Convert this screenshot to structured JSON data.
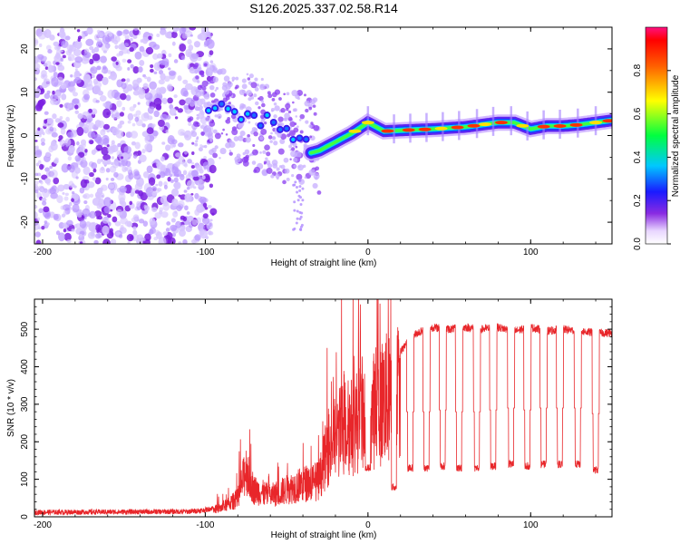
{
  "figure": {
    "title": "S126.2025.337.02.58.R14"
  },
  "chart_data": [
    {
      "type": "heatmap",
      "name": "spectrogram",
      "title": "S126.2025.337.02.58.R14",
      "xlabel": "Height of straight line (km)",
      "ylabel": "Frequency (Hz)",
      "xlim": [
        -205,
        150
      ],
      "ylim": [
        -25,
        25
      ],
      "xticks": [
        -200,
        -100,
        0,
        100
      ],
      "xtick_labels": [
        "-200",
        "-100",
        "0",
        "100"
      ],
      "yticks": [
        -20,
        -10,
        0,
        10,
        20
      ],
      "ytick_labels": [
        "-20",
        "-10",
        "0",
        "10",
        "20"
      ],
      "colorbar": {
        "label": "Normalized spectral amplitude",
        "range": [
          0,
          1
        ],
        "ticks": [
          0.0,
          0.2,
          0.4,
          0.6,
          0.8
        ],
        "tick_labels": [
          "0.0",
          "0.2",
          "0.4",
          "0.6",
          "0.8"
        ]
      },
      "ridge": {
        "description": "dominant frequency trace",
        "x": [
          -100,
          -90,
          -80,
          -70,
          -60,
          -50,
          -40,
          -35,
          -30,
          -20,
          -10,
          0,
          10,
          20,
          40,
          60,
          80,
          90,
          100,
          110,
          120,
          130,
          140,
          150
        ],
        "y": [
          7,
          6,
          5,
          4,
          3,
          1.5,
          -1,
          -4,
          -3.5,
          -1.5,
          0.5,
          3,
          1,
          1.2,
          1.5,
          2,
          3,
          3,
          1.5,
          2.2,
          2.2,
          2.5,
          3,
          3.5
        ]
      }
    },
    {
      "type": "line",
      "name": "snr",
      "xlabel": "Height of straight line (km)",
      "ylabel": "SNR (10 * v/v)",
      "xlim": [
        -205,
        150
      ],
      "ylim": [
        0,
        580
      ],
      "xticks": [
        -200,
        -100,
        0,
        100
      ],
      "xtick_labels": [
        "-200",
        "-100",
        "0",
        "100"
      ],
      "yticks": [
        0,
        100,
        200,
        300,
        400,
        500
      ],
      "ytick_labels": [
        "0",
        "100",
        "200",
        "300",
        "400",
        "500"
      ],
      "color": "#e8262a",
      "envelope": {
        "x": [
          -205,
          -110,
          -100,
          -90,
          -80,
          -75,
          -70,
          -60,
          -50,
          -40,
          -30,
          -25,
          -20,
          -15,
          -10,
          -5,
          0,
          5,
          10,
          15,
          20,
          25,
          30,
          40,
          50,
          60,
          70,
          80,
          90,
          100,
          110,
          120,
          130,
          140,
          150
        ],
        "y": [
          12,
          14,
          18,
          30,
          60,
          160,
          90,
          70,
          90,
          110,
          120,
          220,
          260,
          300,
          300,
          330,
          370,
          350,
          400,
          380,
          440,
          470,
          490,
          505,
          500,
          505,
          500,
          505,
          495,
          505,
          495,
          500,
          495,
          490,
          490
        ]
      },
      "dips": {
        "x": [
          0,
          16,
          26,
          36,
          46,
          56,
          67,
          77,
          88,
          98,
          108,
          118,
          129,
          140
        ],
        "y": [
          130,
          80,
          130,
          130,
          135,
          130,
          130,
          135,
          140,
          135,
          140,
          140,
          140,
          125
        ]
      }
    }
  ]
}
